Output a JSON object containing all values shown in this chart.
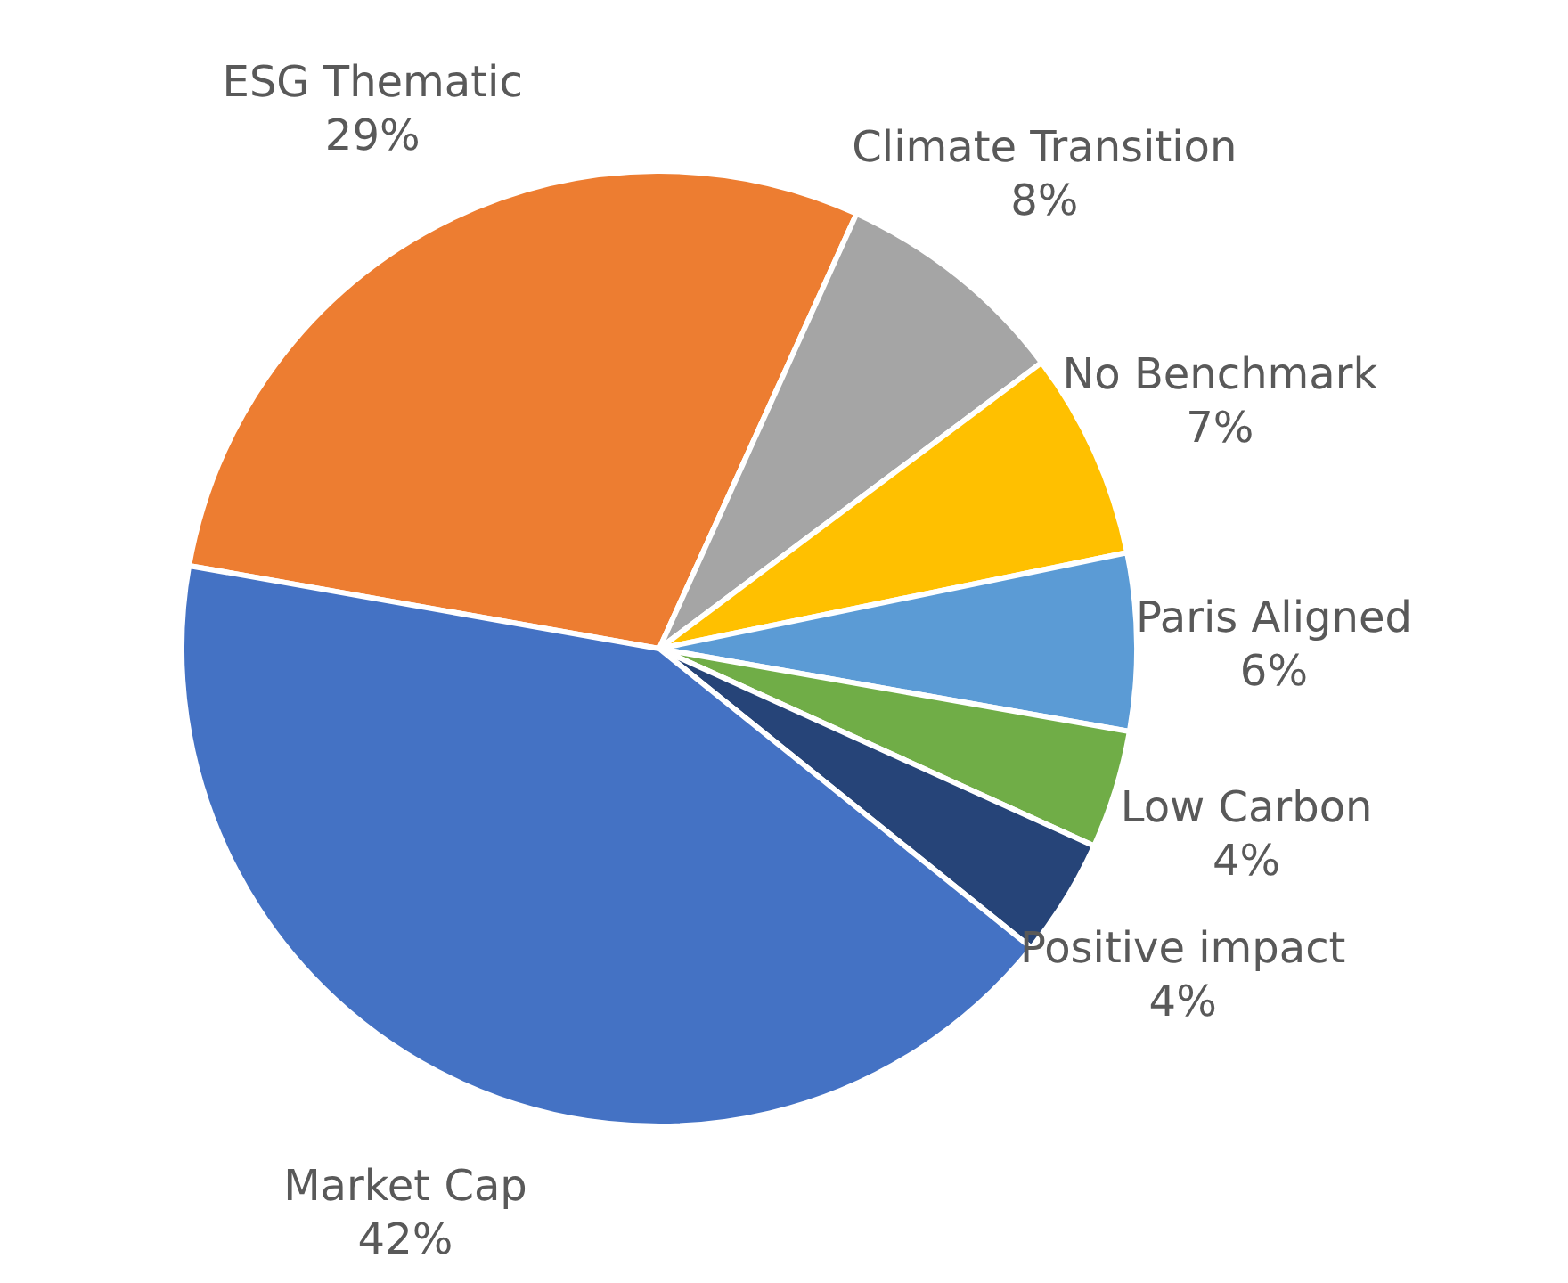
{
  "chart_data": {
    "type": "pie",
    "categories": [
      "ESG Thematic",
      "Climate Transition",
      "No Benchmark",
      "Paris Aligned",
      "Low Carbon",
      "Positive impact",
      "Market Cap"
    ],
    "values": [
      29,
      8,
      7,
      6,
      4,
      4,
      42
    ],
    "colors": [
      "#ed7d31",
      "#a5a5a5",
      "#ffc000",
      "#5b9bd5",
      "#70ad47",
      "#264478",
      "#4472c4"
    ],
    "value_labels": [
      "29%",
      "8%",
      "7%",
      "6%",
      "4%",
      "4%",
      "42%"
    ]
  }
}
